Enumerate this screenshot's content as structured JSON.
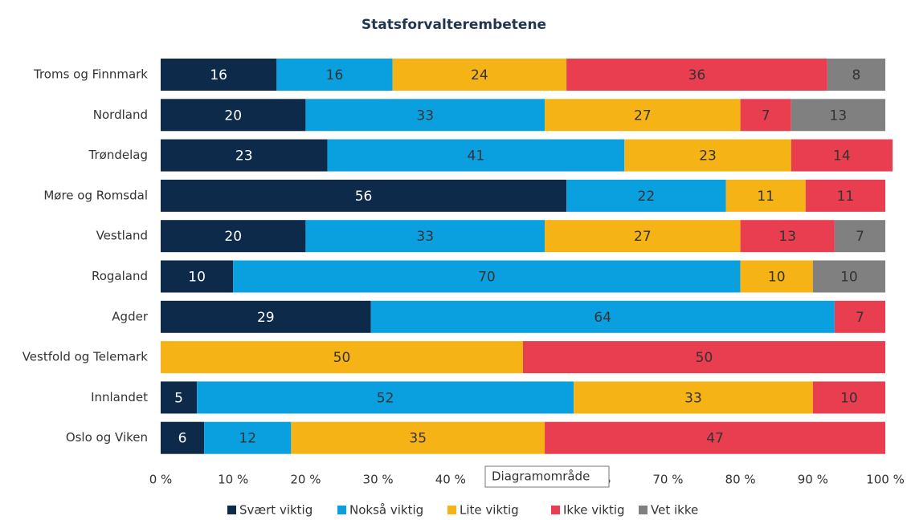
{
  "chart_data": {
    "type": "stacked-barh",
    "title": "Statsforvalterembetene",
    "categories": [
      "Troms og Finnmark",
      "Nordland",
      "Trøndelag",
      "Møre og Romsdal",
      "Vestland",
      "Rogaland",
      "Agder",
      "Vestfold og Telemark",
      "Innlandet",
      "Oslo og Viken"
    ],
    "series": [
      {
        "name": "Svært viktig",
        "color": "#0d2a4a",
        "values": [
          16,
          20,
          23,
          56,
          20,
          10,
          29,
          null,
          5,
          6
        ]
      },
      {
        "name": "Nokså viktig",
        "color": "#0aa0e0",
        "values": [
          16,
          33,
          41,
          22,
          33,
          70,
          64,
          null,
          52,
          12
        ]
      },
      {
        "name": "Lite viktig",
        "color": "#f5b316",
        "values": [
          24,
          27,
          23,
          11,
          27,
          10,
          null,
          50,
          33,
          35
        ]
      },
      {
        "name": "Ikke viktig",
        "color": "#e83e50",
        "values": [
          36,
          7,
          14,
          11,
          13,
          null,
          7,
          50,
          10,
          47
        ]
      },
      {
        "name": "Vet ikke",
        "color": "#808080",
        "values": [
          8,
          13,
          null,
          null,
          7,
          10,
          null,
          null,
          null,
          null
        ]
      }
    ],
    "xlim": [
      0,
      100
    ],
    "xticks": [
      {
        "value": 0,
        "label": "0 %"
      },
      {
        "value": 10,
        "label": "10 %"
      },
      {
        "value": 20,
        "label": "20 %"
      },
      {
        "value": 30,
        "label": "30 %"
      },
      {
        "value": 40,
        "label": "40 %"
      },
      {
        "value": 50,
        "label": "50 %"
      },
      {
        "value": 60,
        "label": "60 %"
      },
      {
        "value": 70,
        "label": "70 %"
      },
      {
        "value": 80,
        "label": "80 %"
      },
      {
        "value": 90,
        "label": "90 %"
      },
      {
        "value": 100,
        "label": "100 %"
      }
    ],
    "legend": "bottom",
    "tooltip": "Diagramområde"
  }
}
